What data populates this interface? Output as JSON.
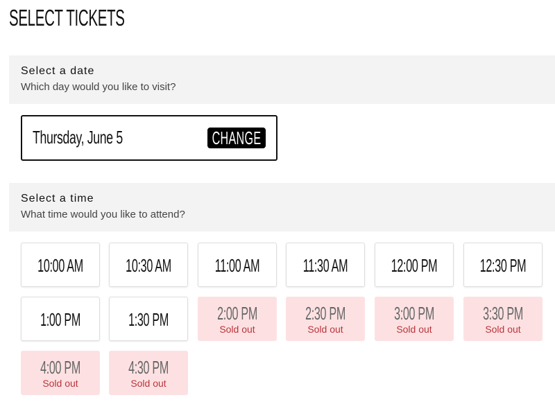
{
  "page": {
    "title": "SELECT TICKETS"
  },
  "date_section": {
    "title": "Select a date",
    "subtitle": "Which day would you like to visit?",
    "selected_date": "Thursday, June 5",
    "change_label": "CHANGE"
  },
  "time_section": {
    "title": "Select a time",
    "subtitle": "What time would you like to attend?"
  },
  "sold_out_label": "Sold out",
  "colors": {
    "section_bg": "#f3f3f3",
    "sold_out_bg": "#fde1e2",
    "sold_out_text": "#b9343b",
    "button_bg": "#000000"
  },
  "time_slots": [
    {
      "time": "10:00 AM",
      "status": ""
    },
    {
      "time": "10:30 AM",
      "status": ""
    },
    {
      "time": "11:00 AM",
      "status": ""
    },
    {
      "time": "11:30 AM",
      "status": ""
    },
    {
      "time": "12:00 PM",
      "status": ""
    },
    {
      "time": "12:30 PM",
      "status": ""
    },
    {
      "time": "1:00 PM",
      "status": ""
    },
    {
      "time": "1:30 PM",
      "status": ""
    },
    {
      "time": "2:00 PM",
      "status": "Sold out"
    },
    {
      "time": "2:30 PM",
      "status": "Sold out"
    },
    {
      "time": "3:00 PM",
      "status": "Sold out"
    },
    {
      "time": "3:30 PM",
      "status": "Sold out"
    },
    {
      "time": "4:00 PM",
      "status": "Sold out"
    },
    {
      "time": "4:30 PM",
      "status": "Sold out"
    }
  ]
}
